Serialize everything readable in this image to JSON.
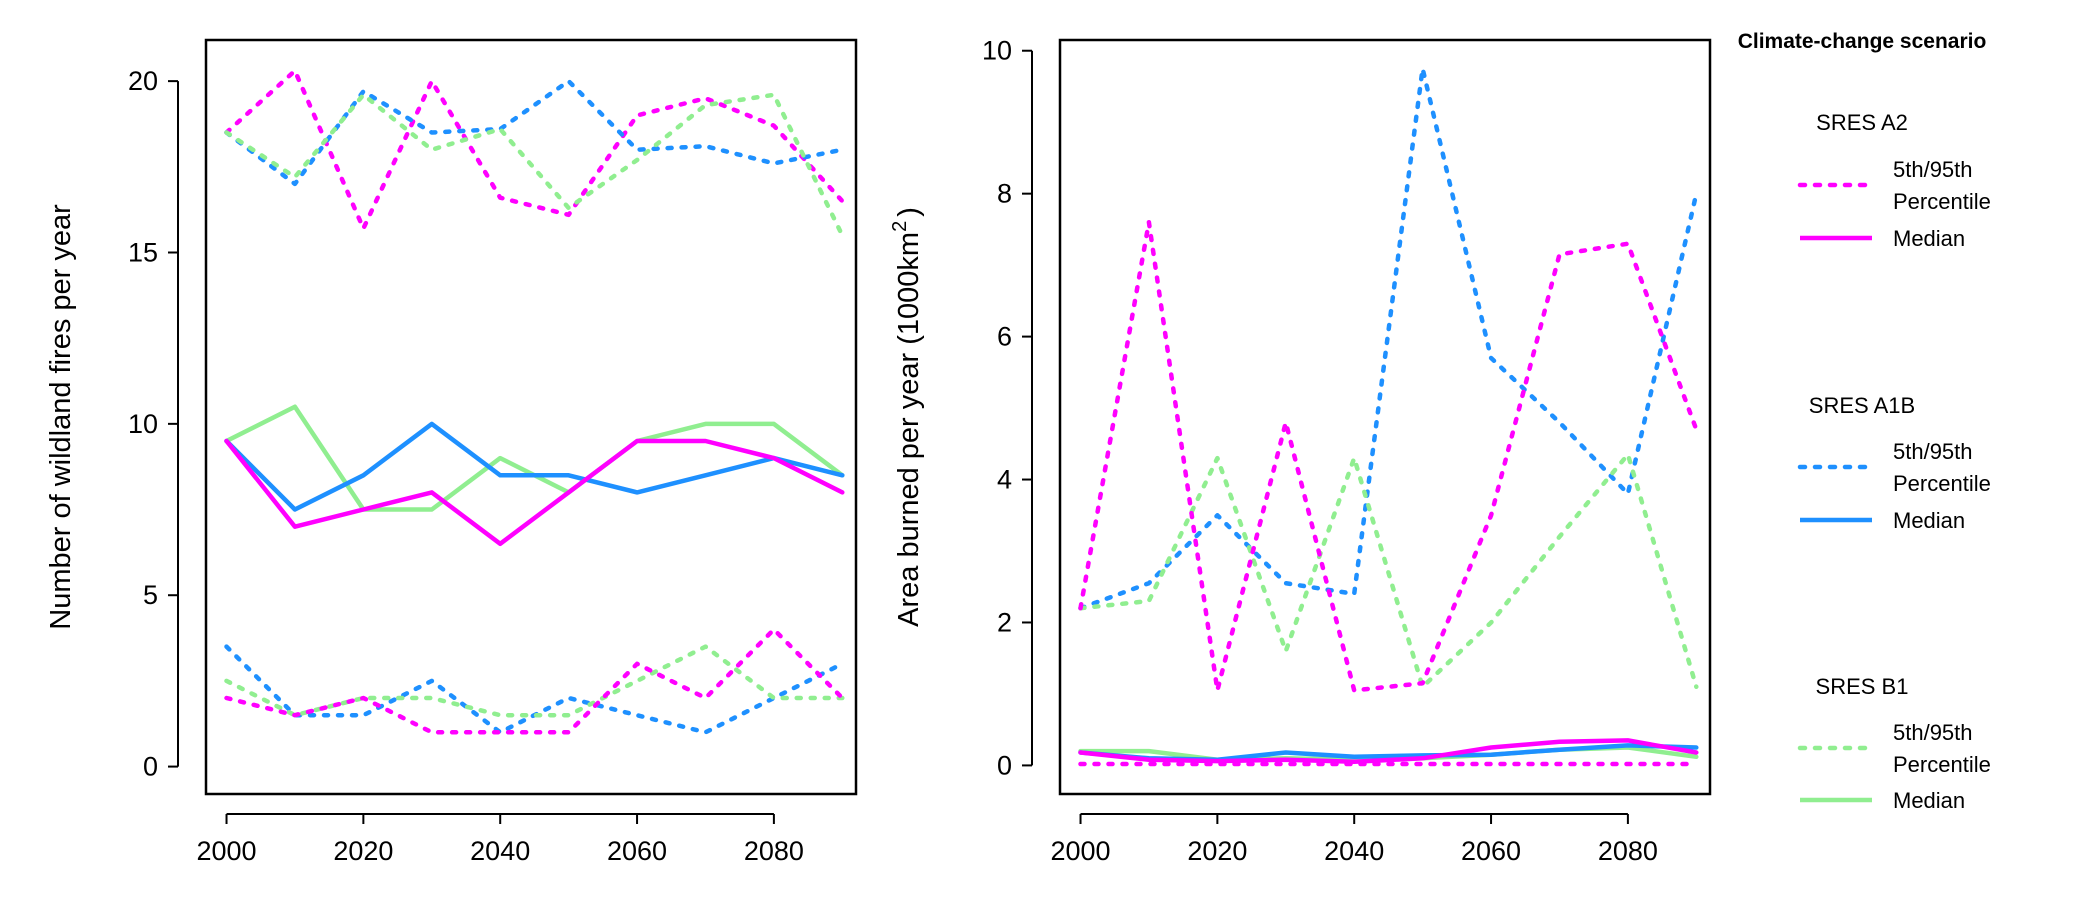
{
  "legend": {
    "heading": "Climate-change scenario",
    "groups": [
      {
        "title": "SRES A2",
        "color": "#ff00ff",
        "pct_label_1": "5th/95th",
        "pct_label_2": "Percentile",
        "median_label": "Median"
      },
      {
        "title": "SRES A1B",
        "color": "#1e90ff",
        "pct_label_1": "5th/95th",
        "pct_label_2": "Percentile",
        "median_label": "Median"
      },
      {
        "title": "SRES B1",
        "color": "#90ee90",
        "pct_label_1": "5th/95th",
        "pct_label_2": "Percentile",
        "median_label": "Median"
      }
    ]
  },
  "chart_data": [
    {
      "type": "line",
      "title": "",
      "xlabel": "",
      "ylabel": "Number of wildland fires per year",
      "x": [
        2000,
        2010,
        2020,
        2030,
        2040,
        2050,
        2060,
        2070,
        2080,
        2090
      ],
      "xlim": [
        1997,
        2092
      ],
      "ylim": [
        -0.8,
        21.2
      ],
      "xticks": [
        "2000",
        "2020",
        "2040",
        "2060",
        "2080"
      ],
      "yticks": [
        "0",
        "5",
        "10",
        "15",
        "20"
      ],
      "grid": false,
      "series": [
        {
          "scenario": "SRES A2",
          "stat": "95th",
          "style": "dotted",
          "values": [
            18.5,
            20.3,
            15.7,
            20.0,
            16.6,
            16.1,
            19.0,
            19.5,
            18.7,
            16.5
          ]
        },
        {
          "scenario": "SRES A1B",
          "stat": "95th",
          "style": "dotted",
          "values": [
            18.5,
            17.0,
            19.7,
            18.5,
            18.6,
            20.0,
            18.0,
            18.1,
            17.6,
            18.0
          ]
        },
        {
          "scenario": "SRES B1",
          "stat": "95th",
          "style": "dotted",
          "values": [
            18.5,
            17.2,
            19.6,
            18.0,
            18.6,
            16.3,
            17.7,
            19.3,
            19.6,
            15.5
          ]
        },
        {
          "scenario": "SRES B1",
          "stat": "median",
          "style": "solid",
          "values": [
            9.5,
            10.5,
            7.5,
            7.5,
            9.0,
            8.0,
            9.5,
            10.0,
            10.0,
            8.5
          ]
        },
        {
          "scenario": "SRES A1B",
          "stat": "median",
          "style": "solid",
          "values": [
            9.5,
            7.5,
            8.5,
            10.0,
            8.5,
            8.5,
            8.0,
            8.5,
            9.0,
            8.5
          ]
        },
        {
          "scenario": "SRES A2",
          "stat": "median",
          "style": "solid",
          "values": [
            9.5,
            7.0,
            7.5,
            8.0,
            6.5,
            8.0,
            9.5,
            9.5,
            9.0,
            8.0
          ]
        },
        {
          "scenario": "SRES A1B",
          "stat": "5th",
          "style": "dotted",
          "values": [
            3.5,
            1.5,
            1.5,
            2.5,
            1.0,
            2.0,
            1.5,
            1.0,
            2.0,
            3.0
          ]
        },
        {
          "scenario": "SRES B1",
          "stat": "5th",
          "style": "dotted",
          "values": [
            2.5,
            1.5,
            2.0,
            2.0,
            1.5,
            1.5,
            2.5,
            3.5,
            2.0,
            2.0
          ]
        },
        {
          "scenario": "SRES A2",
          "stat": "5th",
          "style": "dotted",
          "values": [
            2.0,
            1.5,
            2.0,
            1.0,
            1.0,
            1.0,
            3.0,
            2.0,
            4.0,
            2.0
          ]
        }
      ]
    },
    {
      "type": "line",
      "title": "",
      "xlabel": "",
      "ylabel": "Area burned per year (1000km",
      "ylabel_sup": "2",
      "ylabel_end": ")",
      "x": [
        2000,
        2010,
        2020,
        2030,
        2040,
        2050,
        2060,
        2070,
        2080,
        2090
      ],
      "xlim": [
        1997,
        2092
      ],
      "ylim": [
        -0.4,
        10.15
      ],
      "xticks": [
        "2000",
        "2020",
        "2040",
        "2060",
        "2080"
      ],
      "yticks": [
        "0",
        "2",
        "4",
        "6",
        "8",
        "10"
      ],
      "grid": false,
      "series": [
        {
          "scenario": "SRES A1B",
          "stat": "95th",
          "style": "dotted",
          "values": [
            2.2,
            2.55,
            3.5,
            2.55,
            2.4,
            9.75,
            5.7,
            4.8,
            3.8,
            8.0
          ]
        },
        {
          "scenario": "SRES B1",
          "stat": "95th",
          "style": "dotted",
          "values": [
            2.2,
            2.3,
            4.3,
            1.6,
            4.3,
            1.1,
            2.0,
            3.2,
            4.35,
            1.1
          ]
        },
        {
          "scenario": "SRES A2",
          "stat": "95th",
          "style": "dotted",
          "values": [
            2.2,
            7.6,
            1.05,
            4.8,
            1.05,
            1.15,
            3.5,
            7.15,
            7.3,
            4.7
          ]
        },
        {
          "scenario": "SRES B1",
          "stat": "median",
          "style": "solid",
          "values": [
            0.2,
            0.2,
            0.08,
            0.1,
            0.08,
            0.1,
            0.15,
            0.22,
            0.25,
            0.12
          ]
        },
        {
          "scenario": "SRES A1B",
          "stat": "median",
          "style": "solid",
          "values": [
            0.18,
            0.1,
            0.08,
            0.18,
            0.12,
            0.14,
            0.15,
            0.22,
            0.28,
            0.25
          ]
        },
        {
          "scenario": "SRES A2",
          "stat": "median",
          "style": "solid",
          "values": [
            0.18,
            0.08,
            0.06,
            0.08,
            0.05,
            0.1,
            0.25,
            0.33,
            0.35,
            0.18
          ]
        },
        {
          "scenario": "SRES A2",
          "stat": "5th",
          "style": "dotted",
          "values": [
            0.02,
            0.02,
            0.02,
            0.02,
            0.02,
            0.02,
            0.02,
            0.02,
            0.02,
            0.02
          ]
        }
      ]
    }
  ]
}
